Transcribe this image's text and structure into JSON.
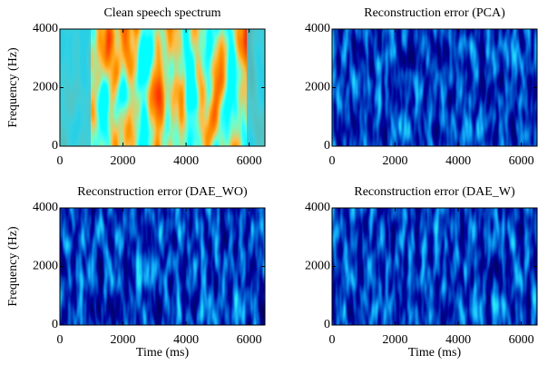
{
  "chart_data": [
    {
      "type": "heatmap",
      "title": "Clean speech spectrum",
      "ylabel": "Frequency (Hz)",
      "colormap": "jet",
      "xlim": [
        0,
        6500
      ],
      "ylim": [
        0,
        4000
      ],
      "xticks": [
        0,
        2000,
        4000,
        6000
      ],
      "yticks": [
        0,
        2000,
        4000
      ]
    },
    {
      "type": "heatmap",
      "title": "Reconstruction error (PCA)",
      "colormap": "jet",
      "xlim": [
        0,
        6500
      ],
      "ylim": [
        0,
        4000
      ],
      "xticks": [
        0,
        2000,
        4000,
        6000
      ],
      "yticks": [
        0,
        2000,
        4000
      ]
    },
    {
      "type": "heatmap",
      "title": "Reconstruction error (DAE_WO)",
      "ylabel": "Frequency (Hz)",
      "xlabel": "Time (ms)",
      "colormap": "jet",
      "xlim": [
        0,
        6500
      ],
      "ylim": [
        0,
        4000
      ],
      "xticks": [
        0,
        2000,
        4000,
        6000
      ],
      "yticks": [
        0,
        2000,
        4000
      ]
    },
    {
      "type": "heatmap",
      "title": "Reconstruction error (DAE_W)",
      "xlabel": "Time (ms)",
      "colormap": "jet",
      "xlim": [
        0,
        6500
      ],
      "ylim": [
        0,
        4000
      ],
      "xticks": [
        0,
        2000,
        4000,
        6000
      ],
      "yticks": [
        0,
        2000,
        4000
      ]
    }
  ]
}
